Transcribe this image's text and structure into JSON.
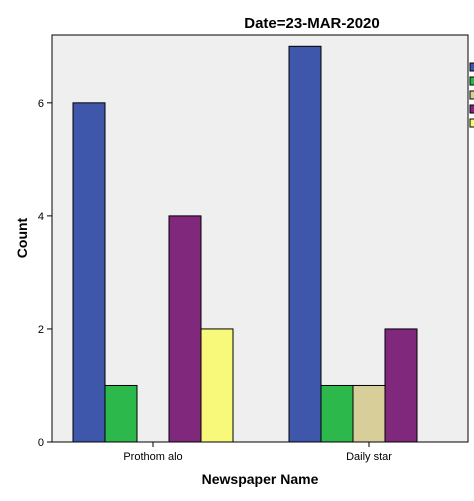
{
  "chart_data": {
    "type": "bar",
    "title": "Date=23-MAR-2020",
    "xlabel": "Newspaper Name",
    "ylabel": "Count",
    "categories": [
      "Prothom alo",
      "Daily star"
    ],
    "ylim": [
      0,
      7.2
    ],
    "yticks": [
      0,
      2,
      4,
      6
    ],
    "grid": false,
    "legend_position": "right",
    "series": [
      {
        "color": "#3f57aa",
        "values": [
          6,
          7
        ]
      },
      {
        "color": "#2db84b",
        "values": [
          1,
          1
        ]
      },
      {
        "color": "#d7ce9a",
        "values": [
          0,
          1
        ]
      },
      {
        "color": "#80287c",
        "values": [
          4,
          2
        ]
      },
      {
        "color": "#f8f97b",
        "values": [
          2,
          0
        ]
      }
    ]
  }
}
